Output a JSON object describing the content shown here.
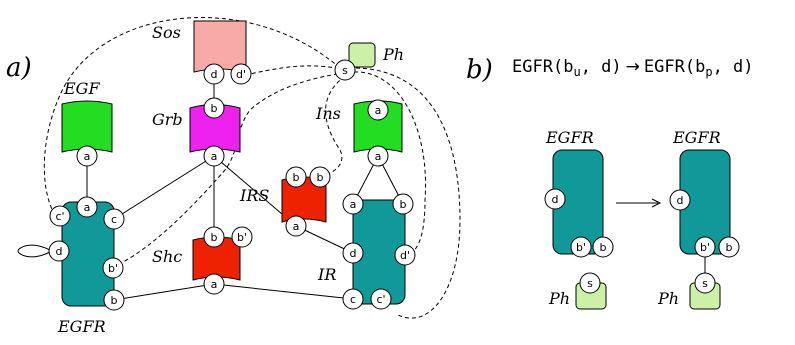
{
  "panel_a": {
    "label": "a)",
    "agents": [
      {
        "id": "sos",
        "name": "Sos",
        "color": "#f8aaa8",
        "sites": [
          "d",
          "d'"
        ]
      },
      {
        "id": "ph",
        "name": "Ph",
        "color": "#ccf0a8",
        "sites": [
          "s"
        ]
      },
      {
        "id": "egf",
        "name": "EGF",
        "color": "#22dd22",
        "sites": [
          "a"
        ]
      },
      {
        "id": "grb",
        "name": "Grb",
        "color": "#ee22ee",
        "sites": [
          "b",
          "a"
        ]
      },
      {
        "id": "ins",
        "name": "Ins",
        "color": "#22dd22",
        "sites": [
          "a",
          "a"
        ]
      },
      {
        "id": "irs",
        "name": "IRS",
        "color": "#ee2200",
        "sites": [
          "b",
          "b",
          "a"
        ]
      },
      {
        "id": "shc",
        "name": "Shc",
        "color": "#ee2200",
        "sites": [
          "b",
          "b'",
          "a"
        ]
      },
      {
        "id": "egfr",
        "name": "EGFR",
        "color": "#119999",
        "sites": [
          "a",
          "c'",
          "c",
          "d",
          "b'",
          "b"
        ]
      },
      {
        "id": "ir",
        "name": "IR",
        "color": "#119999",
        "sites": [
          "a",
          "b",
          "d",
          "d'",
          "c",
          "c'"
        ]
      }
    ]
  },
  "panel_b": {
    "label": "b)",
    "rule": {
      "lhs_agent": "EGFR",
      "lhs_open": "(",
      "lhs_site_base": "b",
      "lhs_site_sub": "u",
      "lhs_rest": ", d)",
      "arrow": "→",
      "rhs_agent": "EGFR",
      "rhs_open": "(",
      "rhs_site_base": "b",
      "rhs_site_sub": "p",
      "rhs_rest": ", d)"
    },
    "left_agent": {
      "name": "EGFR",
      "color": "#119999",
      "sites": [
        "d",
        "b'",
        "b"
      ]
    },
    "right_agent": {
      "name": "EGFR",
      "color": "#119999",
      "sites": [
        "d",
        "b'",
        "b"
      ]
    },
    "left_ph": {
      "name": "Ph",
      "color": "#ccf0a8",
      "sites": [
        "s"
      ]
    },
    "right_ph": {
      "name": "Ph",
      "color": "#ccf0a8",
      "sites": [
        "s"
      ]
    }
  }
}
